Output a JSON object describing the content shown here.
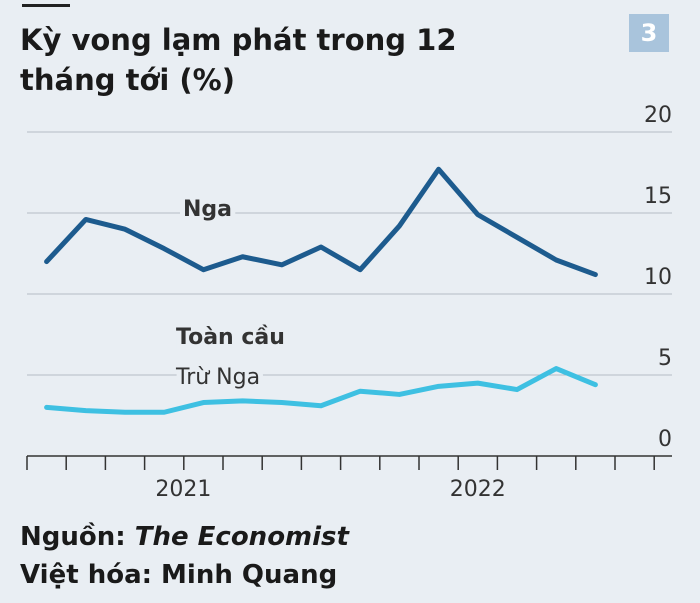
{
  "chart_data": {
    "type": "line",
    "title": "Kỳ vong lạm phát trong 12 tháng tới (%)",
    "badge": "3",
    "categories": [
      null,
      null,
      null,
      null,
      "2021",
      null,
      null,
      null,
      null,
      null,
      null,
      "2022",
      null,
      null,
      null
    ],
    "series": [
      {
        "name": "Nga",
        "color": "#1d5b8e",
        "values": [
          12.0,
          14.6,
          14.0,
          12.8,
          11.5,
          12.3,
          11.8,
          12.9,
          11.5,
          14.2,
          17.7,
          14.9,
          13.5,
          12.1,
          11.2
        ]
      },
      {
        "name": "Toàn cầu",
        "color": "#3ec0e2",
        "values": [
          3.0,
          2.8,
          2.7,
          2.7,
          3.3,
          3.4,
          3.3,
          3.1,
          4.0,
          3.8,
          4.3,
          4.5,
          4.1,
          5.4,
          4.4
        ]
      }
    ],
    "annotations": [
      "Trừ Nga"
    ],
    "ylim": [
      0,
      20
    ],
    "yticks": [
      0,
      5,
      10,
      15,
      20
    ],
    "grid": true,
    "source_label": "Nguồn:",
    "source": "The Economist",
    "credit": "Việt hóa: Minh Quang"
  }
}
